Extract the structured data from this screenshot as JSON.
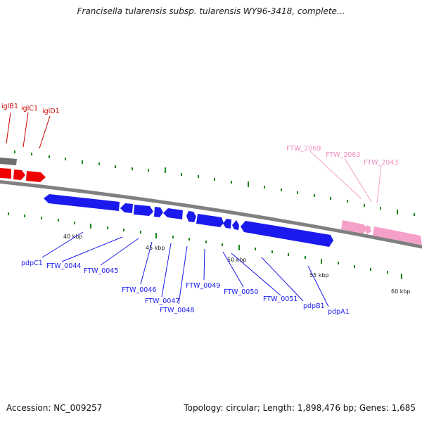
{
  "header": {
    "title": "Francisella tularensis subsp. tularensis WY96-3418, complete..."
  },
  "footer": {
    "accession": "Accession: NC_009257",
    "summary": "Topology: circular; Length: 1,898,476 bp; Genes: 1,685"
  },
  "colors": {
    "backbone": "#808080",
    "red_genes": "#ee0000",
    "blue_genes": "#1a1aee",
    "pink_genes": "#f5a0c8",
    "tick": "#1a8a1a"
  },
  "scale": {
    "ticks": [
      "40 kbp",
      "45 kbp",
      "50 kbp",
      "55 kbp",
      "60 kbp"
    ]
  },
  "genes": {
    "red": [
      "iglB1",
      "iglC1",
      "iglD1"
    ],
    "blue": [
      "pdpC1",
      "FTW_0044",
      "FTW_0045",
      "FTW_0046",
      "FTW_0047",
      "FTW_0048",
      "FTW_0049",
      "FTW_0050",
      "FTW_0051",
      "pdpB1",
      "pdpA1"
    ],
    "pink": [
      "FTW_2069",
      "FTW_2063",
      "FTW_2043"
    ]
  }
}
